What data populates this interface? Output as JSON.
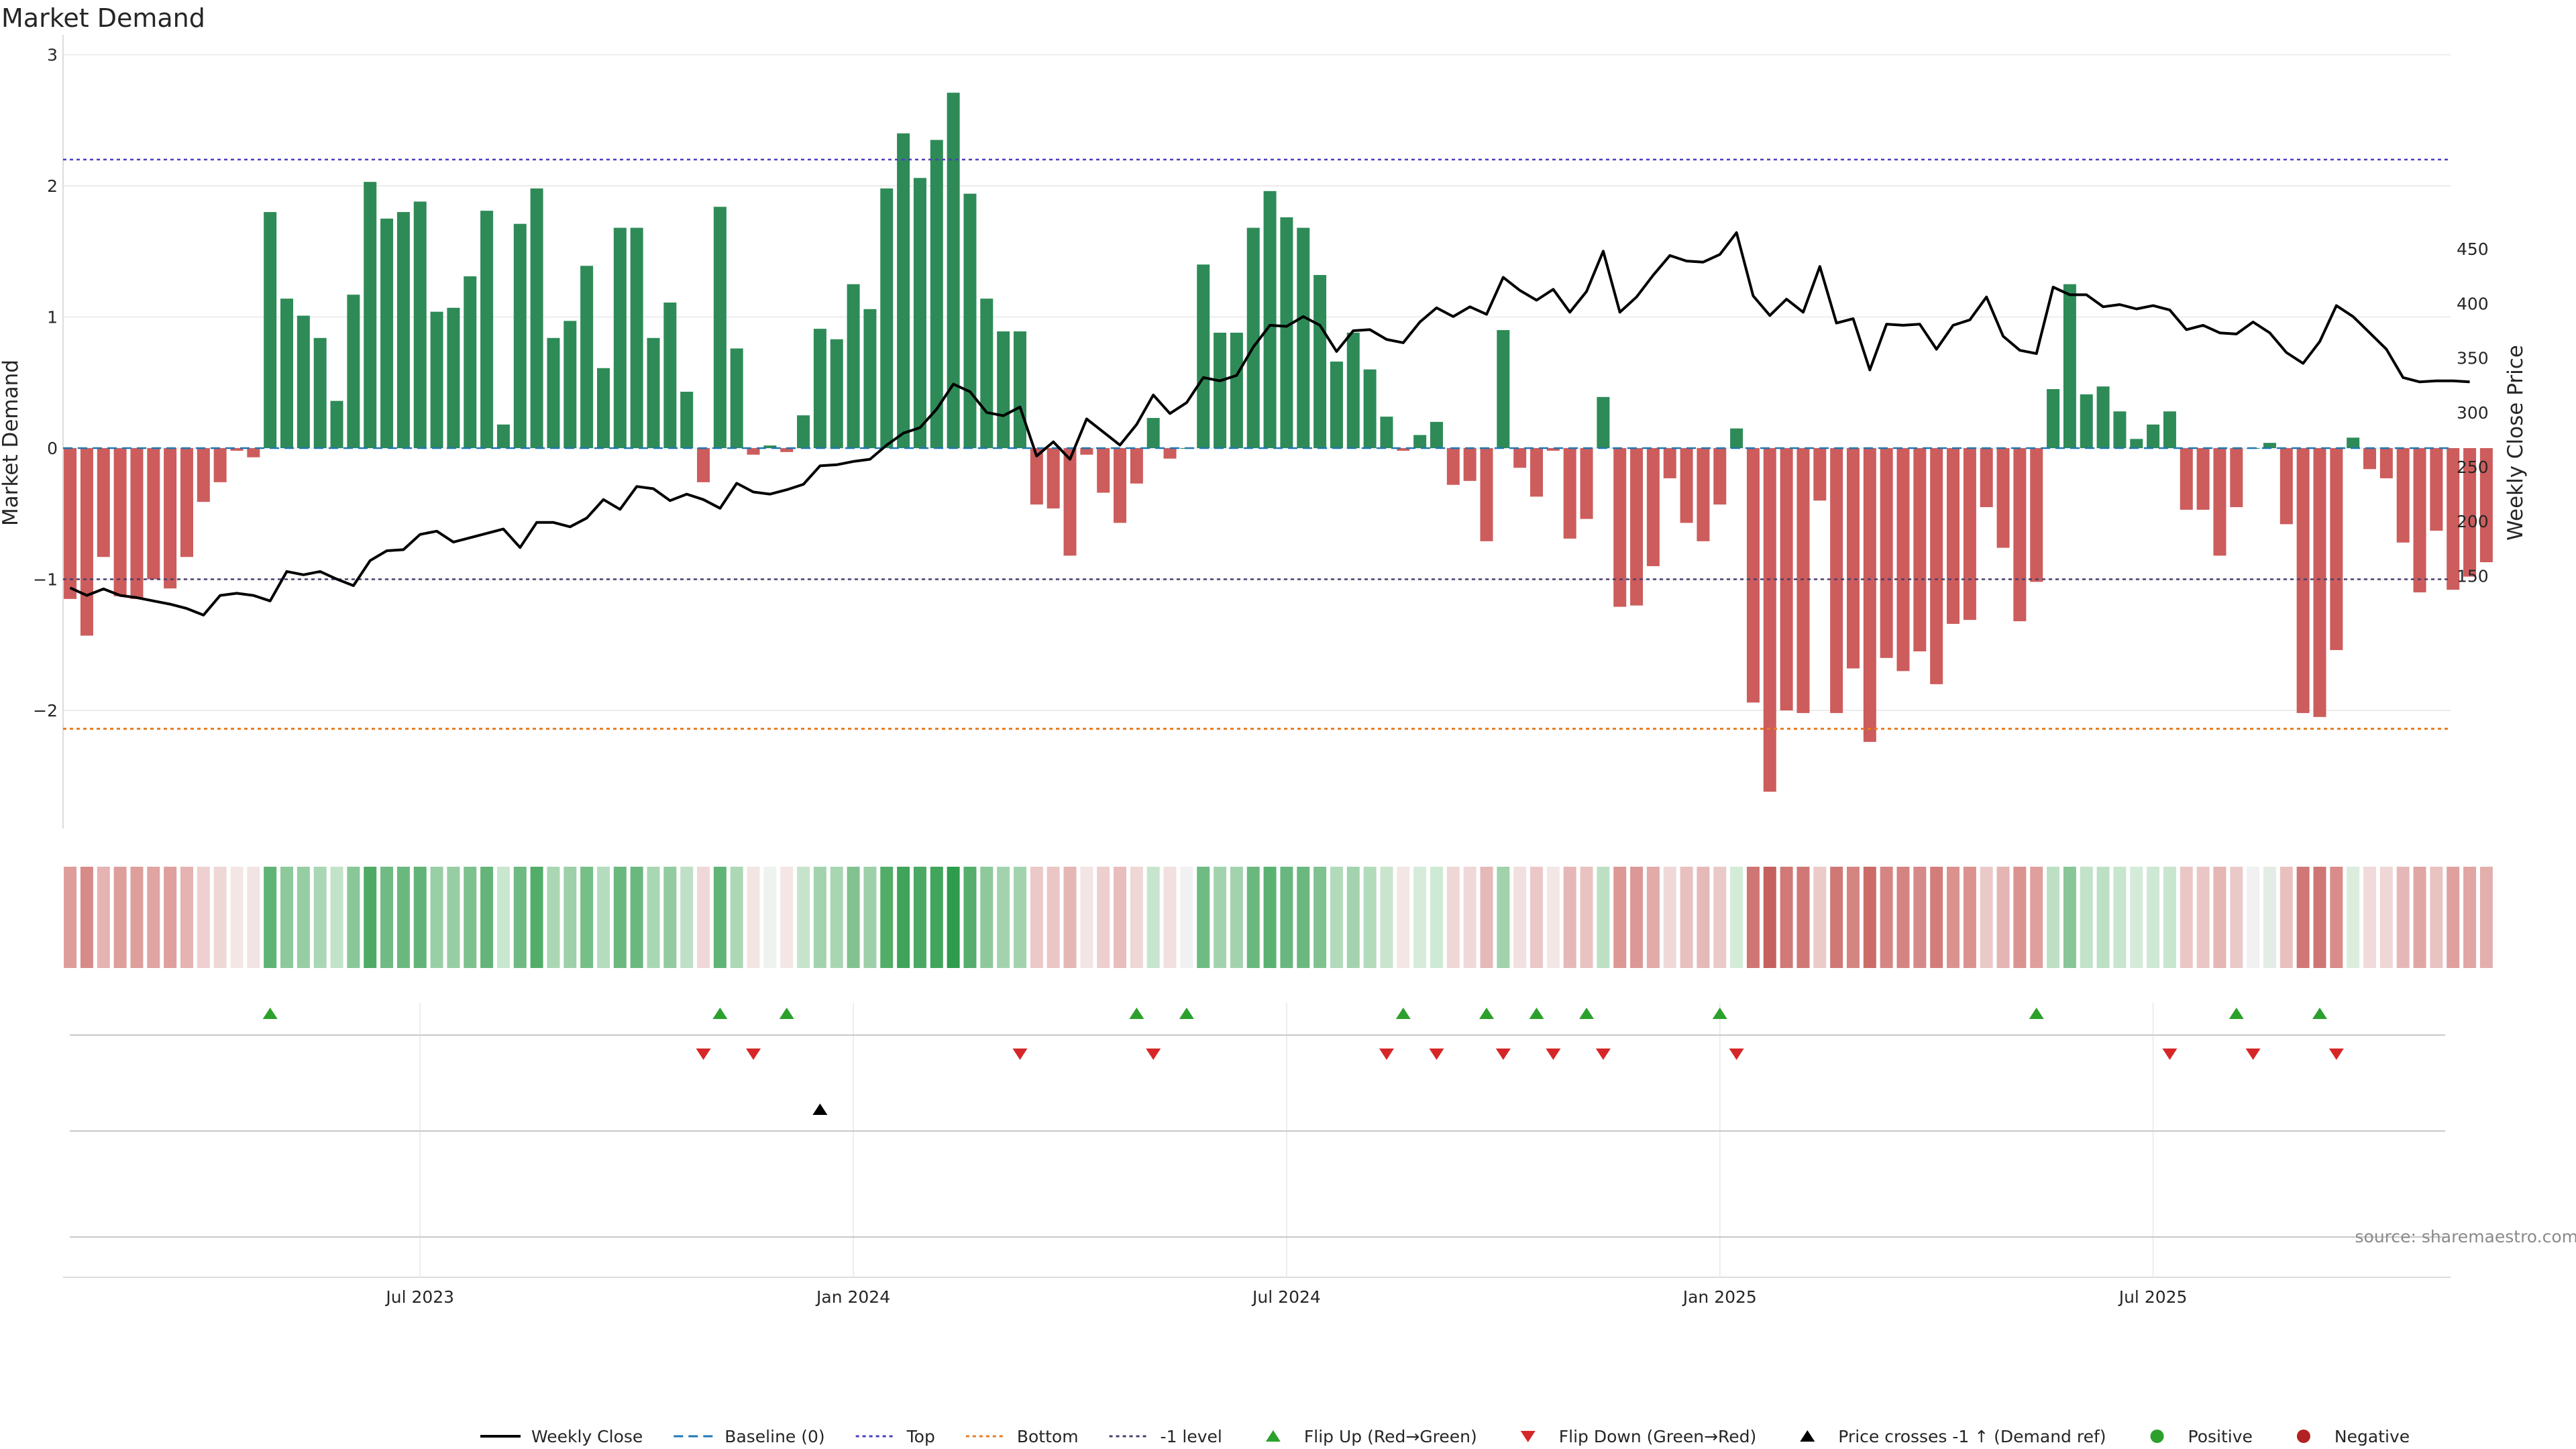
{
  "chart_data": {
    "type": "bar",
    "title": "Market Demand",
    "ylabel": "Market Demand",
    "y2label": "Weekly Close Price",
    "ylim": [
      -2.9,
      3.0
    ],
    "y2lim": [
      97.5,
      463.5
    ],
    "yticks": [
      {
        "v": 3,
        "label": "3"
      },
      {
        "v": 2,
        "label": "2"
      },
      {
        "v": 1,
        "label": "1"
      },
      {
        "v": 0,
        "label": "0"
      },
      {
        "v": -1,
        "label": "−1"
      },
      {
        "v": -2,
        "label": "−2"
      }
    ],
    "y2ticks": [
      {
        "v": 450,
        "label": "450"
      },
      {
        "v": 400,
        "label": "400"
      },
      {
        "v": 350,
        "label": "350"
      },
      {
        "v": 300,
        "label": "300"
      },
      {
        "v": 250,
        "label": "250"
      },
      {
        "v": 200,
        "label": "200"
      },
      {
        "v": 150,
        "label": "150"
      }
    ],
    "xticks": [
      {
        "week": 21,
        "label": "Jul 2023"
      },
      {
        "week": 47,
        "label": "Jan 2024"
      },
      {
        "week": 73,
        "label": "Jul 2024"
      },
      {
        "week": 99,
        "label": "Jan 2025"
      },
      {
        "week": 125,
        "label": "Jul 2025"
      }
    ],
    "demand": [
      -1.15,
      -1.43,
      -0.83,
      -1.13,
      -1.15,
      -1.0,
      -1.07,
      -0.83,
      -0.41,
      -0.26,
      -0.02,
      -0.07,
      1.8,
      1.14,
      1.01,
      0.84,
      0.36,
      1.17,
      2.03,
      1.75,
      1.8,
      1.88,
      1.04,
      1.07,
      1.31,
      1.81,
      0.18,
      1.71,
      1.98,
      0.84,
      0.97,
      1.39,
      0.61,
      1.68,
      1.68,
      0.84,
      1.11,
      0.43,
      -0.26,
      1.84,
      0.76,
      -0.05,
      0.02,
      -0.03,
      0.25,
      0.91,
      0.83,
      1.25,
      1.06,
      1.98,
      2.4,
      2.06,
      2.35,
      2.71,
      1.94,
      1.14,
      0.89,
      0.89,
      -0.43,
      -0.46,
      -0.82,
      -0.05,
      -0.34,
      -0.57,
      -0.27,
      0.23,
      -0.08,
      0.0,
      1.4,
      0.88,
      0.88,
      1.68,
      1.96,
      1.76,
      1.68,
      1.32,
      0.66,
      0.88,
      0.6,
      0.24,
      -0.02,
      0.1,
      0.2,
      -0.28,
      -0.25,
      -0.71,
      0.9,
      -0.15,
      -0.37,
      -0.02,
      -0.69,
      -0.54,
      0.39,
      -1.21,
      -1.2,
      -0.9,
      -0.23,
      -0.57,
      -0.71,
      -0.43,
      0.15,
      -1.94,
      -2.62,
      -2.0,
      -2.02,
      -0.4,
      -2.02,
      -1.68,
      -2.24,
      -1.6,
      -1.7,
      -1.55,
      -1.8,
      -1.34,
      -1.31,
      -0.45,
      -0.76,
      -1.32,
      -1.02,
      0.45,
      1.25,
      0.41,
      0.47,
      0.28,
      0.07,
      0.18,
      0.28,
      -0.47,
      -0.47,
      -0.82,
      -0.45,
      0.0,
      0.04,
      -0.58,
      -2.02,
      -2.05,
      -1.54,
      0.08,
      -0.16,
      -0.23,
      -0.72,
      -1.1,
      -0.63,
      -1.08,
      -0.98,
      -0.87
    ],
    "close": [
      139,
      132,
      138,
      132,
      130,
      127,
      124,
      120,
      114,
      132,
      134,
      132,
      127,
      154,
      151,
      154,
      147,
      141,
      164,
      173,
      174,
      188,
      191,
      181,
      185,
      189,
      193,
      176,
      199,
      199,
      195,
      203,
      220,
      211,
      232,
      230,
      219,
      225,
      220,
      212,
      235,
      227,
      225,
      229,
      234,
      251,
      252,
      255,
      257,
      270,
      281,
      286,
      303,
      326,
      319,
      300,
      297,
      305,
      260,
      273,
      257,
      294,
      282,
      270,
      289,
      316,
      299,
      309,
      332,
      329,
      334,
      360,
      380,
      379,
      388,
      380,
      356,
      375,
      376,
      367,
      364,
      383,
      396,
      388,
      397,
      390,
      424,
      412,
      403,
      413,
      392,
      411,
      448,
      392,
      406,
      426,
      444,
      439,
      438,
      445,
      465,
      407,
      389,
      404,
      392,
      434,
      382,
      386,
      339,
      381,
      380,
      381,
      358,
      380,
      385,
      406,
      370,
      357,
      354,
      415,
      408,
      408,
      397,
      399,
      395,
      398,
      394,
      376,
      380,
      373,
      372,
      383,
      373,
      355,
      345,
      365,
      398,
      388,
      373,
      358,
      332,
      328,
      329,
      329,
      328
    ],
    "heat_shades": [
      "#de9d9b",
      "#d78b88",
      "#e4b3b2",
      "#de9e9c",
      "#de9e9b",
      "#e0a4a2",
      "#df9f9d",
      "#e4b3b2",
      "#edd0cf",
      "#efd7d6",
      "#f3e7e6",
      "#f2e4e3",
      "#5fb374",
      "#8ec99b",
      "#97cda3",
      "#a9d7b3",
      "#c3e3c9",
      "#8ac798",
      "#4eaa65",
      "#70ba83",
      "#6bb87f",
      "#62b377",
      "#99cfa5",
      "#97cda3",
      "#7dc18d",
      "#64b47a",
      "#c9e6cf",
      "#6fb982",
      "#52ad69",
      "#a9d7b3",
      "#9dd0a8",
      "#76bf87",
      "#b5dcbe",
      "#6bb87f",
      "#6bb87f",
      "#a9d7b3",
      "#92cb9f",
      "#bfe0c6",
      "#efd8d7",
      "#61b477",
      "#acd8b6",
      "#f2e5e4",
      "#eef3ef",
      "#f3e6e5",
      "#c6e4cb",
      "#a3d3ae",
      "#a8d6b2",
      "#81c290",
      "#9dd0a8",
      "#52ad69",
      "#3fa359",
      "#4ba963",
      "#41a55b",
      "#2f9b4d",
      "#55ae6c",
      "#8ec99b",
      "#a3d3ae",
      "#a3d3ae",
      "#ebc9c8",
      "#eac6c5",
      "#e4b6b4",
      "#f2e5e4",
      "#edcfcd",
      "#e8bebd",
      "#efd7d6",
      "#c7e5cd",
      "#f1e0df",
      "#f0f1f0",
      "#6ebb83",
      "#a3d3ae",
      "#a3d3ae",
      "#6bb87f",
      "#5ab271",
      "#69b77e",
      "#6bb87f",
      "#80c28f",
      "#b1dbbb",
      "#a3d3ae",
      "#b2dbbc",
      "#c9e5ce",
      "#f3e7e6",
      "#d7ebdb",
      "#ceead4",
      "#efd7d6",
      "#efd8d7",
      "#e5b9b8",
      "#a1d2ab",
      "#f1e0df",
      "#ebc8c7",
      "#f3e7e6",
      "#e5b8b7",
      "#e9c3c2",
      "#bde0c5",
      "#dc9895",
      "#dc9896",
      "#e2aaa8",
      "#efd9d8",
      "#e8c0bf",
      "#e5b9b8",
      "#eacac9",
      "#d2ecd8",
      "#cf7674",
      "#c4605e",
      "#d07977",
      "#d07876",
      "#ebcbca",
      "#d07876",
      "#d58581",
      "#cb6c69",
      "#d58683",
      "#d48481",
      "#d6898a",
      "#d37d7a",
      "#db928f",
      "#db9390",
      "#eacac9",
      "#e4b5b3",
      "#db938f",
      "#df9f9d",
      "#bde0c4",
      "#88c697",
      "#c2e2c9",
      "#bde0c4",
      "#c8e5ce",
      "#d4ebda",
      "#cfe8d5",
      "#c8e5ce",
      "#eac7c6",
      "#eac7c6",
      "#e4b6b4",
      "#eacac9",
      "#f0f1f0",
      "#e4ece6",
      "#e8c1bf",
      "#d07876",
      "#cf7674",
      "#d98c89",
      "#dcedde",
      "#f0dbda",
      "#efd7d6",
      "#e5b8b7",
      "#e0a6a4",
      "#e8c3c2",
      "#dfa09e",
      "#e1a5a3",
      "#e3afad"
    ],
    "flip_up_weeks": [
      12,
      39,
      43,
      64,
      67,
      80,
      85,
      88,
      91,
      99,
      118,
      130,
      135
    ],
    "flip_down_weeks": [
      38,
      41,
      57,
      65,
      79,
      82,
      86,
      89,
      92,
      100,
      126,
      131,
      136
    ],
    "price_cross_weeks": [
      45
    ],
    "levels": {
      "top": 2.2,
      "bottom": -2.14,
      "minus_one": -1.0
    },
    "colors": {
      "positive": "#2e8b57",
      "negative": "#cd5c5c",
      "line": "#000000",
      "top": "#4a3fbf",
      "bottom": "#e67e22",
      "minus_one": "#4a3f6f",
      "baseline": "#1f77b4",
      "flip_up": "#2ca02c",
      "flip_down": "#d62728",
      "price_cross": "#000000",
      "dot_positive": "#2ca02c",
      "dot_negative": "#b22222"
    },
    "legend": [
      {
        "label": "Weekly Close",
        "kind": "line",
        "color": "#000000"
      },
      {
        "label": "Baseline (0)",
        "kind": "dash",
        "color": "#1f77b4"
      },
      {
        "label": "Top",
        "kind": "dot",
        "color": "#4a3fbf"
      },
      {
        "label": "Bottom",
        "kind": "dot",
        "color": "#e67e22"
      },
      {
        "label": "-1 level",
        "kind": "dot",
        "color": "#4a3f6f"
      },
      {
        "label": "Flip Up (Red→Green)",
        "kind": "tri-up",
        "color": "#2ca02c"
      },
      {
        "label": "Flip Down (Green→Red)",
        "kind": "tri-down",
        "color": "#d62728"
      },
      {
        "label": "Price crosses -1 ↑ (Demand ref)",
        "kind": "tri-up",
        "color": "#000000"
      },
      {
        "label": "Positive",
        "kind": "circle",
        "color": "#2ca02c"
      },
      {
        "label": "Negative",
        "kind": "circle",
        "color": "#b22222"
      }
    ],
    "source": "source: sharemaestro.com"
  }
}
